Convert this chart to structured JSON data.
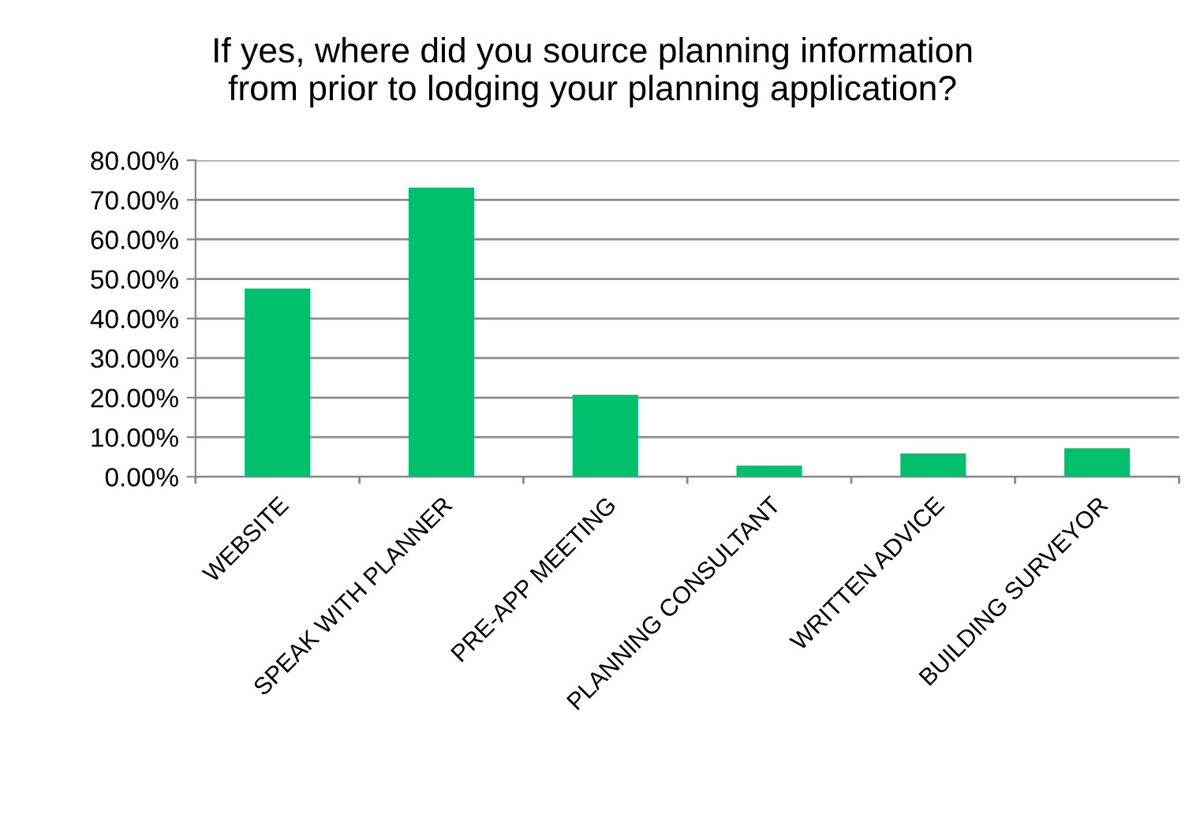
{
  "chart_data": {
    "type": "bar",
    "title": "If yes, where did you source planning information\nfrom prior to lodging your planning application?",
    "categories": [
      "WEBSITE",
      "SPEAK WITH PLANNER",
      "PRE-APP MEETING",
      "PLANNING CONSULTANT",
      "WRITTEN ADVICE",
      "BUILDING SURVEYOR"
    ],
    "values": [
      47.6,
      73.1,
      20.7,
      2.8,
      5.9,
      7.2
    ],
    "color": "#00c06d",
    "ylim": [
      0,
      80
    ],
    "yticks": [
      {
        "value": 0,
        "label": "0.00%"
      },
      {
        "value": 10,
        "label": "10.00%"
      },
      {
        "value": 20,
        "label": "20.00%"
      },
      {
        "value": 30,
        "label": "30.00%"
      },
      {
        "value": 40,
        "label": "40.00%"
      },
      {
        "value": 50,
        "label": "50.00%"
      },
      {
        "value": 60,
        "label": "60.00%"
      },
      {
        "value": 70,
        "label": "70.00%"
      },
      {
        "value": 80,
        "label": "80.00%"
      }
    ],
    "grid": "y",
    "legend": false
  }
}
